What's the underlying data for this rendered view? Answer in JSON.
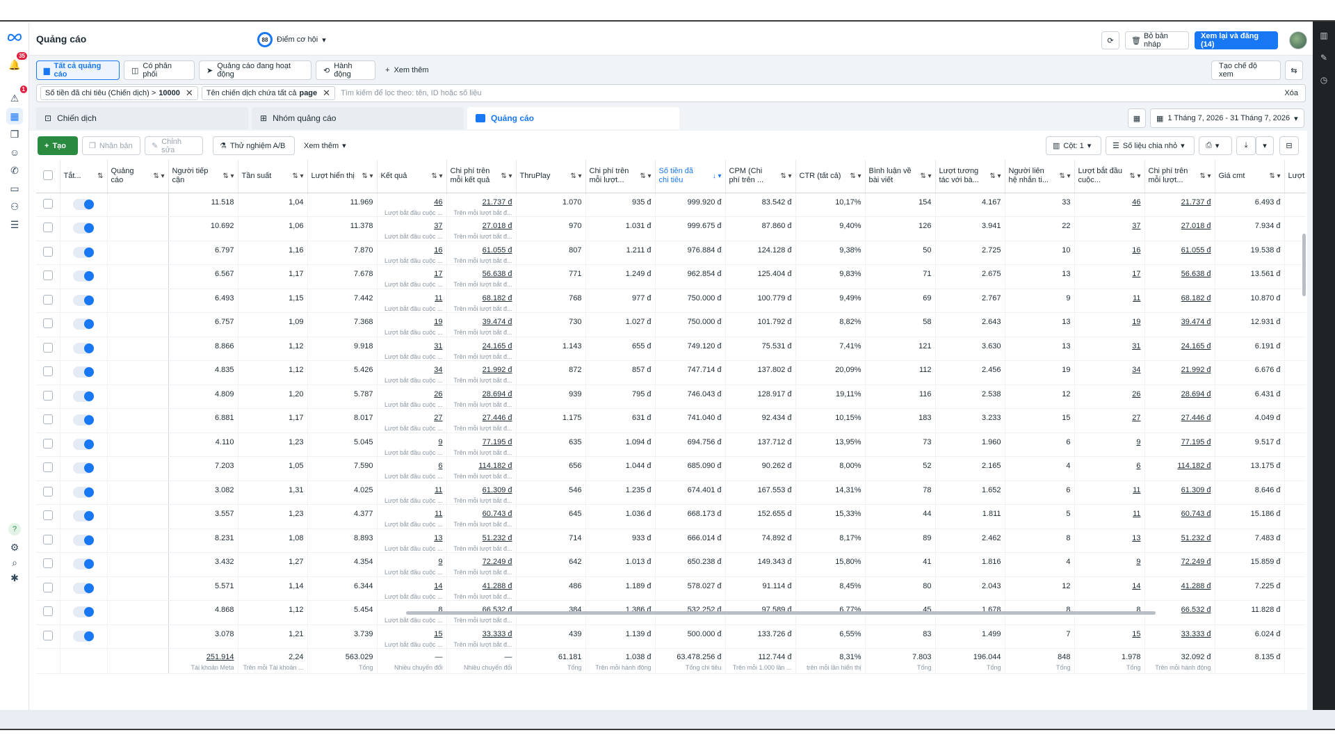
{
  "header": {
    "title": "Quảng cáo",
    "score_value": "88",
    "score_label": "Điểm cơ hội",
    "discard_label": "Bỏ bản nháp",
    "publish_label": "Xem lại và đăng (14)",
    "more_label": "···"
  },
  "nav": {
    "notif_badge": "35",
    "alerts_badge": "1"
  },
  "tabs": [
    "Tất cả quảng cáo",
    "Có phân phối",
    "Quảng cáo đang hoạt động",
    "Hành động",
    "Xem thêm"
  ],
  "view_button": "Tạo chế độ xem",
  "filters": {
    "chip1_text": "Số tiền đã chi tiêu (Chiến dịch) >",
    "chip1_value": "10000",
    "chip2_text": "Tên chiến dịch chứa tất cả",
    "chip2_value": "page",
    "placeholder": "Tìm kiếm để lọc theo: tên, ID hoặc số liệu",
    "clear": "Xóa"
  },
  "levels": {
    "campaign": "Chiến dịch",
    "adset": "Nhóm quảng cáo",
    "ad": "Quảng cáo"
  },
  "date_range": "1 Tháng 7, 2026 - 31 Tháng 7, 2026",
  "toolbar": {
    "create": "Tạo",
    "duplicate": "Nhân bản",
    "edit": "Chỉnh sửa",
    "ab_test": "Thử nghiệm A/B",
    "more": "Xem thêm",
    "columns": "Cột: 1",
    "breakdown": "Số liệu chia nhỏ"
  },
  "columns": {
    "toggle": "Tắt...",
    "name": "Quảng cáo",
    "reach": "Người tiếp cận",
    "frequency": "Tần suất",
    "impressions": "Lượt hiển thị",
    "results": "Kết quả",
    "cost_per_result": "Chi phí trên mỗi kết quả",
    "thruplay": "ThruPlay",
    "cost_per_thruplay": "Chi phí trên mỗi lượt...",
    "amount_spent": "Số tiền đã chi tiêu",
    "cpm": "CPM (Chi phí trên ...",
    "ctr": "CTR (tất cả)",
    "comments": "Bình luận về bài viết",
    "engagement": "Lượt tương tác với bà...",
    "contacts": "Người liên hệ nhắn ti...",
    "conversations": "Lượt bắt đầu cuộc...",
    "cost_per_conv": "Chi phí trên mỗi lượt...",
    "cmt_cost": "Giá cmt",
    "last": "Lượt b đầu th"
  },
  "result_sub": "Lượt bắt đầu cuộc ...",
  "cpr_sub": "Trên mỗi lượt bắt đ...",
  "rows": [
    {
      "reach": "11.518",
      "freq": "1,04",
      "impr": "11.969",
      "res": "46",
      "cpr": "21.737 đ",
      "thru": "1.070",
      "cpt": "935 đ",
      "spent": "999.920 đ",
      "cpm": "83.542 đ",
      "ctr": "10,17%",
      "cmt": "154",
      "eng": "4.167",
      "cont": "33",
      "conv": "46",
      "cpc": "21.737 đ",
      "gia": "6.493 đ"
    },
    {
      "reach": "10.692",
      "freq": "1,06",
      "impr": "11.378",
      "res": "37",
      "cpr": "27.018 đ",
      "thru": "970",
      "cpt": "1.031 đ",
      "spent": "999.675 đ",
      "cpm": "87.860 đ",
      "ctr": "9,40%",
      "cmt": "126",
      "eng": "3.941",
      "cont": "22",
      "conv": "37",
      "cpc": "27.018 đ",
      "gia": "7.934 đ"
    },
    {
      "reach": "6.797",
      "freq": "1,16",
      "impr": "7.870",
      "res": "16",
      "cpr": "61.055 đ",
      "thru": "807",
      "cpt": "1.211 đ",
      "spent": "976.884 đ",
      "cpm": "124.128 đ",
      "ctr": "9,38%",
      "cmt": "50",
      "eng": "2.725",
      "cont": "10",
      "conv": "16",
      "cpc": "61.055 đ",
      "gia": "19.538 đ"
    },
    {
      "reach": "6.567",
      "freq": "1,17",
      "impr": "7.678",
      "res": "17",
      "cpr": "56.638 đ",
      "thru": "771",
      "cpt": "1.249 đ",
      "spent": "962.854 đ",
      "cpm": "125.404 đ",
      "ctr": "9,83%",
      "cmt": "71",
      "eng": "2.675",
      "cont": "13",
      "conv": "17",
      "cpc": "56.638 đ",
      "gia": "13.561 đ"
    },
    {
      "reach": "6.493",
      "freq": "1,15",
      "impr": "7.442",
      "res": "11",
      "cpr": "68.182 đ",
      "thru": "768",
      "cpt": "977 đ",
      "spent": "750.000 đ",
      "cpm": "100.779 đ",
      "ctr": "9,49%",
      "cmt": "69",
      "eng": "2.767",
      "cont": "9",
      "conv": "11",
      "cpc": "68.182 đ",
      "gia": "10.870 đ"
    },
    {
      "reach": "6.757",
      "freq": "1,09",
      "impr": "7.368",
      "res": "19",
      "cpr": "39.474 đ",
      "thru": "730",
      "cpt": "1.027 đ",
      "spent": "750.000 đ",
      "cpm": "101.792 đ",
      "ctr": "8,82%",
      "cmt": "58",
      "eng": "2.643",
      "cont": "13",
      "conv": "19",
      "cpc": "39.474 đ",
      "gia": "12.931 đ"
    },
    {
      "reach": "8.866",
      "freq": "1,12",
      "impr": "9.918",
      "res": "31",
      "cpr": "24.165 đ",
      "thru": "1.143",
      "cpt": "655 đ",
      "spent": "749.120 đ",
      "cpm": "75.531 đ",
      "ctr": "7,41%",
      "cmt": "121",
      "eng": "3.630",
      "cont": "13",
      "conv": "31",
      "cpc": "24.165 đ",
      "gia": "6.191 đ"
    },
    {
      "reach": "4.835",
      "freq": "1,12",
      "impr": "5.426",
      "res": "34",
      "cpr": "21.992 đ",
      "thru": "872",
      "cpt": "857 đ",
      "spent": "747.714 đ",
      "cpm": "137.802 đ",
      "ctr": "20,09%",
      "cmt": "112",
      "eng": "2.456",
      "cont": "19",
      "conv": "34",
      "cpc": "21.992 đ",
      "gia": "6.676 đ"
    },
    {
      "reach": "4.809",
      "freq": "1,20",
      "impr": "5.787",
      "res": "26",
      "cpr": "28.694 đ",
      "thru": "939",
      "cpt": "795 đ",
      "spent": "746.043 đ",
      "cpm": "128.917 đ",
      "ctr": "19,11%",
      "cmt": "116",
      "eng": "2.538",
      "cont": "12",
      "conv": "26",
      "cpc": "28.694 đ",
      "gia": "6.431 đ"
    },
    {
      "reach": "6.881",
      "freq": "1,17",
      "impr": "8.017",
      "res": "27",
      "cpr": "27.446 đ",
      "thru": "1.175",
      "cpt": "631 đ",
      "spent": "741.040 đ",
      "cpm": "92.434 đ",
      "ctr": "10,15%",
      "cmt": "183",
      "eng": "3.233",
      "cont": "15",
      "conv": "27",
      "cpc": "27.446 đ",
      "gia": "4.049 đ"
    },
    {
      "reach": "4.110",
      "freq": "1,23",
      "impr": "5.045",
      "res": "9",
      "cpr": "77.195 đ",
      "thru": "635",
      "cpt": "1.094 đ",
      "spent": "694.756 đ",
      "cpm": "137.712 đ",
      "ctr": "13,95%",
      "cmt": "73",
      "eng": "1.960",
      "cont": "6",
      "conv": "9",
      "cpc": "77.195 đ",
      "gia": "9.517 đ"
    },
    {
      "reach": "7.203",
      "freq": "1,05",
      "impr": "7.590",
      "res": "6",
      "cpr": "114.182 đ",
      "thru": "656",
      "cpt": "1.044 đ",
      "spent": "685.090 đ",
      "cpm": "90.262 đ",
      "ctr": "8,00%",
      "cmt": "52",
      "eng": "2.165",
      "cont": "4",
      "conv": "6",
      "cpc": "114.182 đ",
      "gia": "13.175 đ"
    },
    {
      "reach": "3.082",
      "freq": "1,31",
      "impr": "4.025",
      "res": "11",
      "cpr": "61.309 đ",
      "thru": "546",
      "cpt": "1.235 đ",
      "spent": "674.401 đ",
      "cpm": "167.553 đ",
      "ctr": "14,31%",
      "cmt": "78",
      "eng": "1.652",
      "cont": "6",
      "conv": "11",
      "cpc": "61.309 đ",
      "gia": "8.646 đ"
    },
    {
      "reach": "3.557",
      "freq": "1,23",
      "impr": "4.377",
      "res": "11",
      "cpr": "60.743 đ",
      "thru": "645",
      "cpt": "1.036 đ",
      "spent": "668.173 đ",
      "cpm": "152.655 đ",
      "ctr": "15,33%",
      "cmt": "44",
      "eng": "1.811",
      "cont": "5",
      "conv": "11",
      "cpc": "60.743 đ",
      "gia": "15.186 đ"
    },
    {
      "reach": "8.231",
      "freq": "1,08",
      "impr": "8.893",
      "res": "13",
      "cpr": "51.232 đ",
      "thru": "714",
      "cpt": "933 đ",
      "spent": "666.014 đ",
      "cpm": "74.892 đ",
      "ctr": "8,17%",
      "cmt": "89",
      "eng": "2.462",
      "cont": "8",
      "conv": "13",
      "cpc": "51.232 đ",
      "gia": "7.483 đ"
    },
    {
      "reach": "3.432",
      "freq": "1,27",
      "impr": "4.354",
      "res": "9",
      "cpr": "72.249 đ",
      "thru": "642",
      "cpt": "1.013 đ",
      "spent": "650.238 đ",
      "cpm": "149.343 đ",
      "ctr": "15,80%",
      "cmt": "41",
      "eng": "1.816",
      "cont": "4",
      "conv": "9",
      "cpc": "72.249 đ",
      "gia": "15.859 đ"
    },
    {
      "reach": "5.571",
      "freq": "1,14",
      "impr": "6.344",
      "res": "14",
      "cpr": "41.288 đ",
      "thru": "486",
      "cpt": "1.189 đ",
      "spent": "578.027 đ",
      "cpm": "91.114 đ",
      "ctr": "8,45%",
      "cmt": "80",
      "eng": "2.043",
      "cont": "12",
      "conv": "14",
      "cpc": "41.288 đ",
      "gia": "7.225 đ"
    },
    {
      "reach": "4.868",
      "freq": "1,12",
      "impr": "5.454",
      "res": "8",
      "cpr": "66.532 đ",
      "thru": "384",
      "cpt": "1.386 đ",
      "spent": "532.252 đ",
      "cpm": "97.589 đ",
      "ctr": "6,77%",
      "cmt": "45",
      "eng": "1.678",
      "cont": "8",
      "conv": "8",
      "cpc": "66.532 đ",
      "gia": "11.828 đ"
    },
    {
      "reach": "3.078",
      "freq": "1,21",
      "impr": "3.739",
      "res": "15",
      "cpr": "33.333 đ",
      "thru": "439",
      "cpt": "1.139 đ",
      "spent": "500.000 đ",
      "cpm": "133.726 đ",
      "ctr": "6,55%",
      "cmt": "83",
      "eng": "1.499",
      "cont": "7",
      "conv": "15",
      "cpc": "33.333 đ",
      "gia": "6.024 đ"
    }
  ],
  "totals": {
    "reach": "251.914",
    "reach_sub": "Tài khoản Meta",
    "freq": "2,24",
    "freq_sub": "Trên mỗi Tài khoản ...",
    "impr": "563.029",
    "impr_sub": "Tổng",
    "res": "—",
    "res_sub": "Nhiều chuyển đổi",
    "cpr": "—",
    "cpr_sub": "Nhiều chuyển đổi",
    "thru": "61.181",
    "thru_sub": "Tổng",
    "cpt": "1.038 đ",
    "cpt_sub": "Trên mỗi hành động",
    "spent": "63.478.256 đ",
    "spent_sub": "Tổng chi tiêu",
    "cpm": "112.744 đ",
    "cpm_sub": "Trên mỗi 1.000 lần ...",
    "ctr": "8,31%",
    "ctr_sub": "trên mỗi lần hiển thị",
    "cmt": "7.803",
    "cmt_sub": "Tổng",
    "eng": "196.044",
    "eng_sub": "Tổng",
    "cont": "848",
    "cont_sub": "Tổng",
    "conv": "1.978",
    "conv_sub": "Tổng",
    "cpc": "32.092 đ",
    "cpc_sub": "Trên mỗi hành động",
    "gia": "8.135 đ"
  }
}
